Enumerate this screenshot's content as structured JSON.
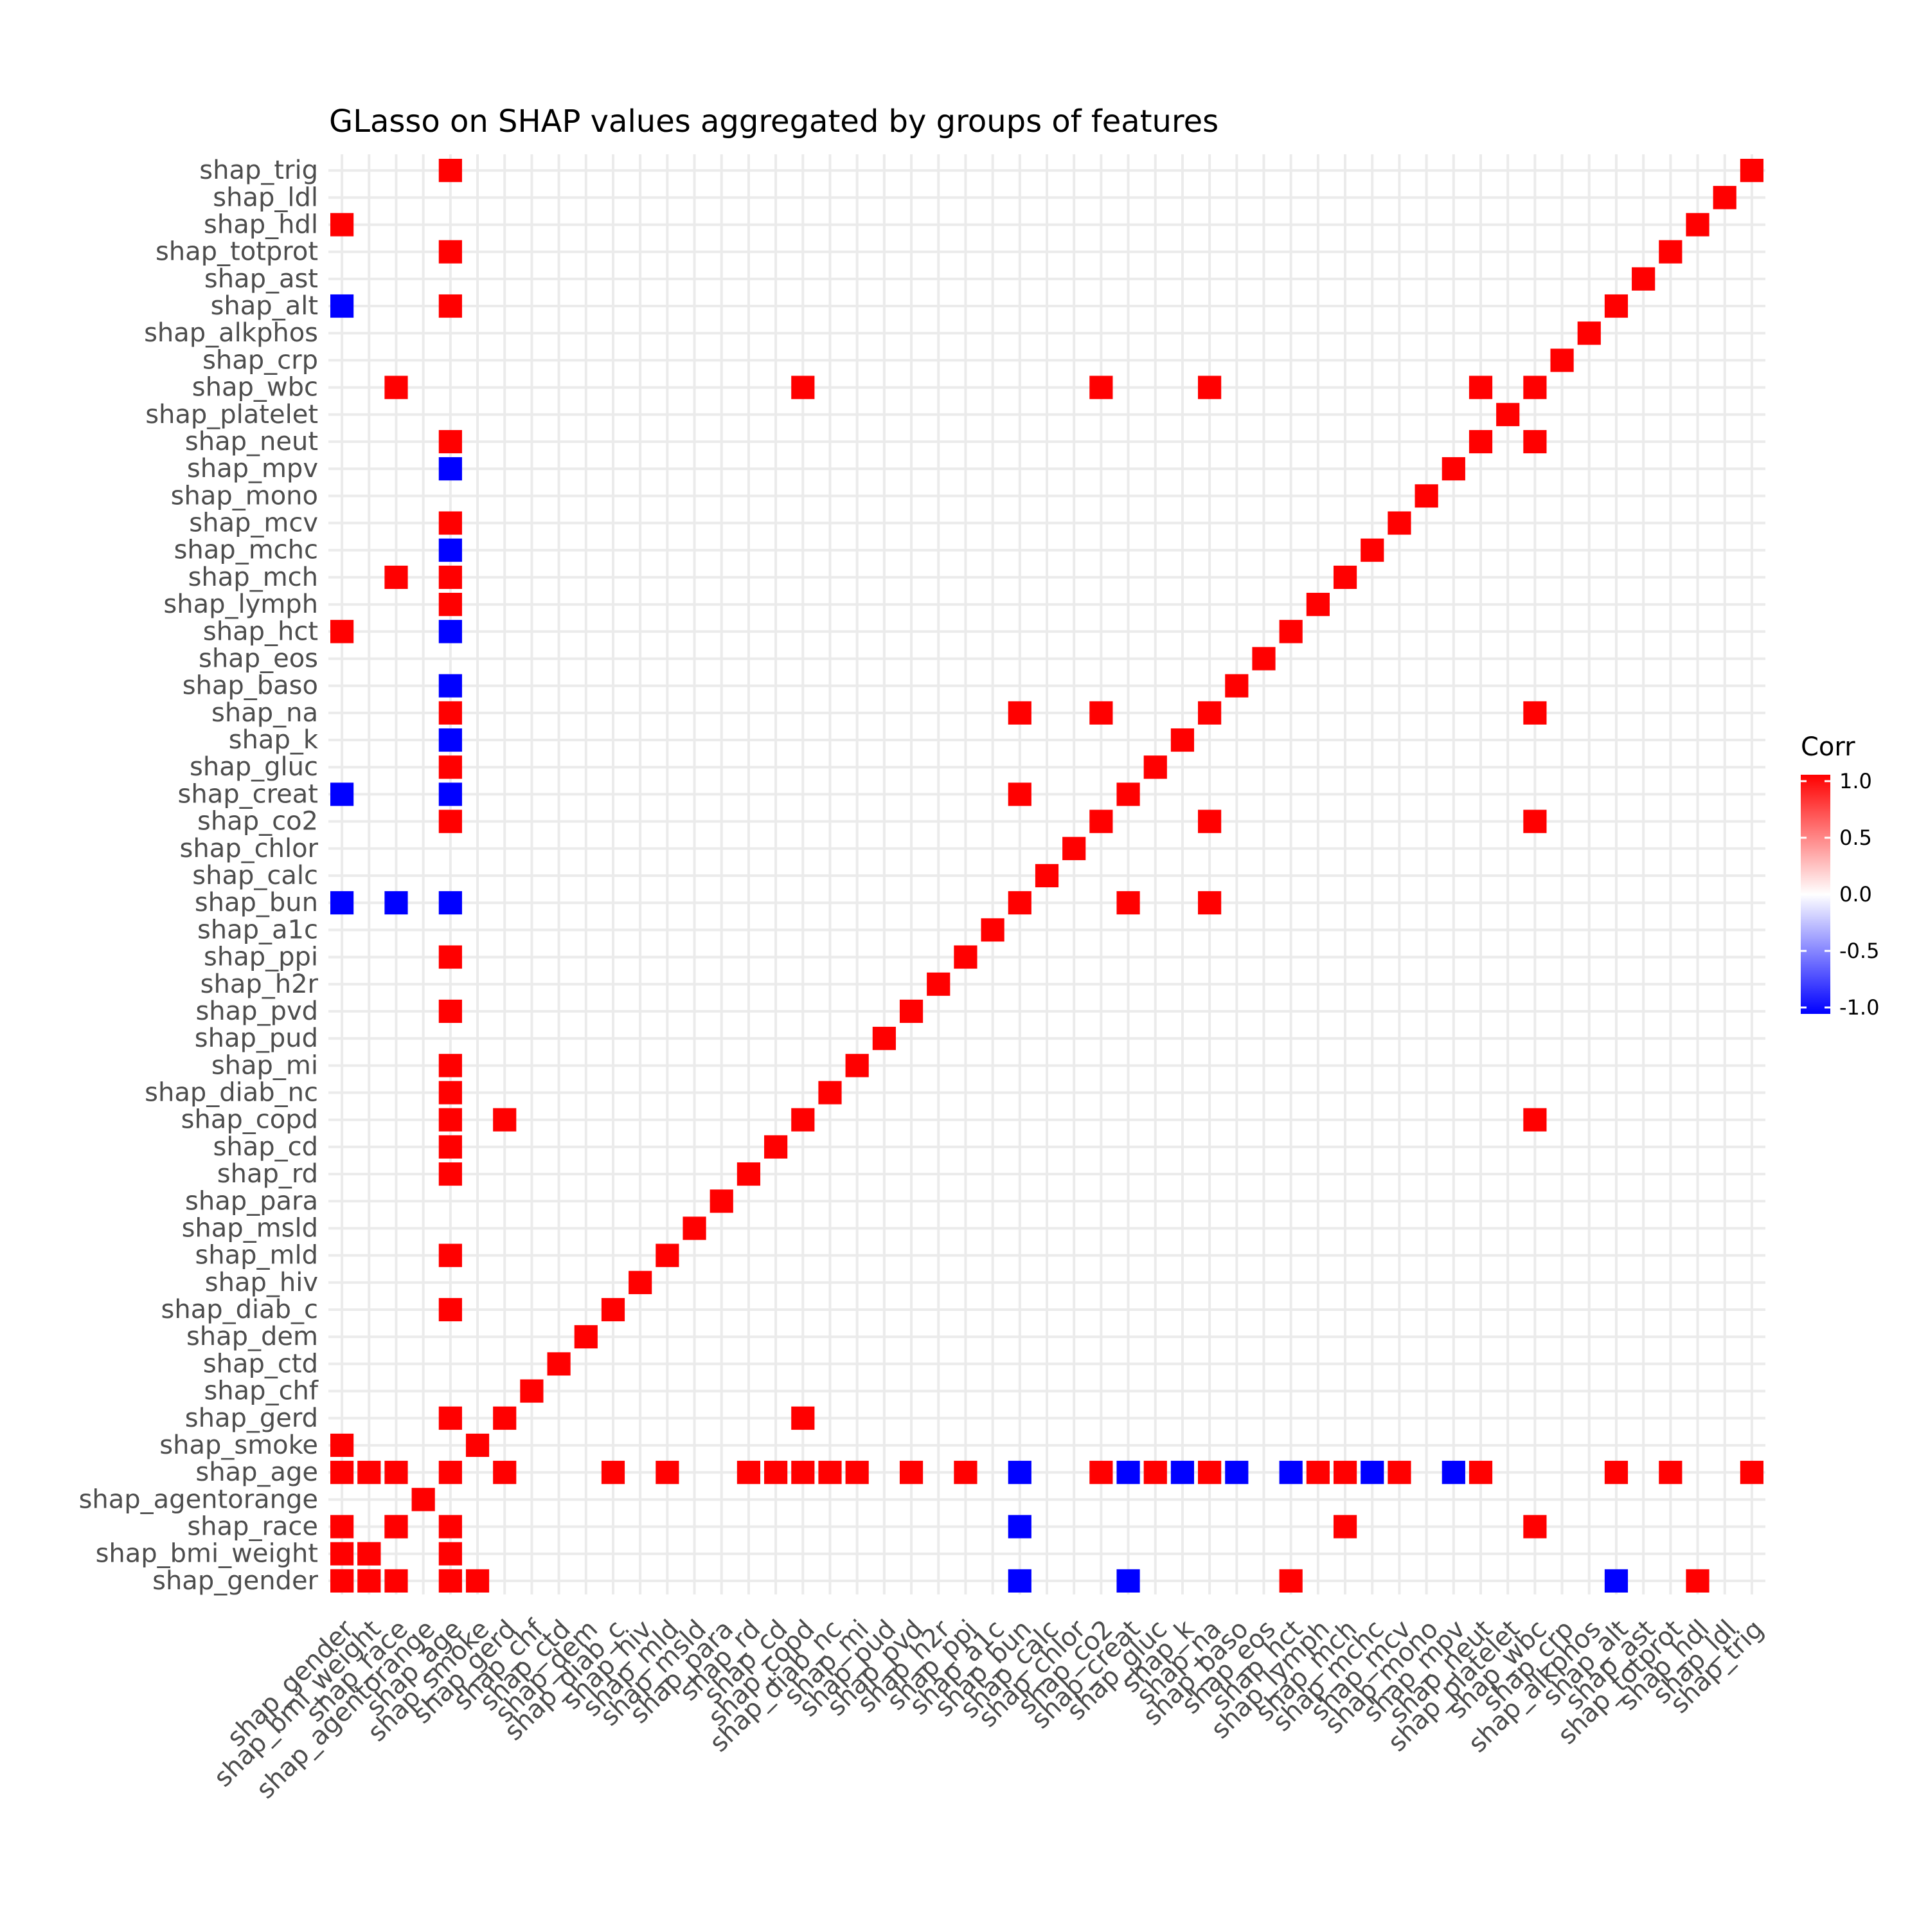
{
  "chart_data": {
    "type": "heatmap",
    "title": "GLasso on SHAP values aggregated by groups of features",
    "xlabel": "",
    "ylabel": "",
    "grid": true,
    "features": [
      "shap_gender",
      "shap_bmi_weight",
      "shap_race",
      "shap_agentorange",
      "shap_age",
      "shap_smoke",
      "shap_gerd",
      "shap_chf",
      "shap_ctd",
      "shap_dem",
      "shap_diab_c",
      "shap_hiv",
      "shap_mld",
      "shap_msld",
      "shap_para",
      "shap_rd",
      "shap_cd",
      "shap_copd",
      "shap_diab_nc",
      "shap_mi",
      "shap_pud",
      "shap_pvd",
      "shap_h2r",
      "shap_ppi",
      "shap_a1c",
      "shap_bun",
      "shap_calc",
      "shap_chlor",
      "shap_co2",
      "shap_creat",
      "shap_gluc",
      "shap_k",
      "shap_na",
      "shap_baso",
      "shap_eos",
      "shap_hct",
      "shap_lymph",
      "shap_mch",
      "shap_mchc",
      "shap_mcv",
      "shap_mono",
      "shap_mpv",
      "shap_neut",
      "shap_platelet",
      "shap_wbc",
      "shap_crp",
      "shap_alkphos",
      "shap_alt",
      "shap_ast",
      "shap_totprot",
      "shap_hdl",
      "shap_ldl",
      "shap_trig"
    ],
    "cells": [
      [
        "shap_trig",
        "shap_age",
        1
      ],
      [
        "shap_hdl",
        "shap_gender",
        1
      ],
      [
        "shap_totprot",
        "shap_age",
        1
      ],
      [
        "shap_alt",
        "shap_gender",
        -1
      ],
      [
        "shap_alt",
        "shap_age",
        1
      ],
      [
        "shap_wbc",
        "shap_race",
        1
      ],
      [
        "shap_wbc",
        "shap_copd",
        1
      ],
      [
        "shap_wbc",
        "shap_co2",
        1
      ],
      [
        "shap_wbc",
        "shap_na",
        1
      ],
      [
        "shap_wbc",
        "shap_neut",
        1
      ],
      [
        "shap_neut",
        "shap_age",
        1
      ],
      [
        "shap_neut",
        "shap_wbc",
        1
      ],
      [
        "shap_mpv",
        "shap_age",
        -1
      ],
      [
        "shap_mcv",
        "shap_age",
        1
      ],
      [
        "shap_mchc",
        "shap_age",
        -1
      ],
      [
        "shap_mch",
        "shap_race",
        1
      ],
      [
        "shap_mch",
        "shap_age",
        1
      ],
      [
        "shap_lymph",
        "shap_age",
        1
      ],
      [
        "shap_hct",
        "shap_gender",
        1
      ],
      [
        "shap_hct",
        "shap_age",
        -1
      ],
      [
        "shap_baso",
        "shap_age",
        -1
      ],
      [
        "shap_na",
        "shap_age",
        1
      ],
      [
        "shap_na",
        "shap_bun",
        1
      ],
      [
        "shap_na",
        "shap_co2",
        1
      ],
      [
        "shap_na",
        "shap_wbc",
        1
      ],
      [
        "shap_k",
        "shap_age",
        -1
      ],
      [
        "shap_gluc",
        "shap_age",
        1
      ],
      [
        "shap_creat",
        "shap_gender",
        -1
      ],
      [
        "shap_creat",
        "shap_age",
        -1
      ],
      [
        "shap_creat",
        "shap_bun",
        1
      ],
      [
        "shap_co2",
        "shap_age",
        1
      ],
      [
        "shap_co2",
        "shap_na",
        1
      ],
      [
        "shap_co2",
        "shap_wbc",
        1
      ],
      [
        "shap_bun",
        "shap_gender",
        -1
      ],
      [
        "shap_bun",
        "shap_race",
        -1
      ],
      [
        "shap_bun",
        "shap_age",
        -1
      ],
      [
        "shap_bun",
        "shap_creat",
        1
      ],
      [
        "shap_bun",
        "shap_na",
        1
      ],
      [
        "shap_ppi",
        "shap_age",
        1
      ],
      [
        "shap_pvd",
        "shap_age",
        1
      ],
      [
        "shap_mi",
        "shap_age",
        1
      ],
      [
        "shap_diab_nc",
        "shap_age",
        1
      ],
      [
        "shap_copd",
        "shap_age",
        1
      ],
      [
        "shap_copd",
        "shap_gerd",
        1
      ],
      [
        "shap_copd",
        "shap_wbc",
        1
      ],
      [
        "shap_cd",
        "shap_age",
        1
      ],
      [
        "shap_rd",
        "shap_age",
        1
      ],
      [
        "shap_mld",
        "shap_age",
        1
      ],
      [
        "shap_diab_c",
        "shap_age",
        1
      ],
      [
        "shap_gerd",
        "shap_age",
        1
      ],
      [
        "shap_gerd",
        "shap_copd",
        1
      ],
      [
        "shap_smoke",
        "shap_gender",
        1
      ],
      [
        "shap_age",
        "shap_gender",
        1
      ],
      [
        "shap_age",
        "shap_bmi_weight",
        1
      ],
      [
        "shap_age",
        "shap_race",
        1
      ],
      [
        "shap_age",
        "shap_gerd",
        1
      ],
      [
        "shap_age",
        "shap_diab_c",
        1
      ],
      [
        "shap_age",
        "shap_mld",
        1
      ],
      [
        "shap_age",
        "shap_rd",
        1
      ],
      [
        "shap_age",
        "shap_cd",
        1
      ],
      [
        "shap_age",
        "shap_copd",
        1
      ],
      [
        "shap_age",
        "shap_diab_nc",
        1
      ],
      [
        "shap_age",
        "shap_mi",
        1
      ],
      [
        "shap_age",
        "shap_pvd",
        1
      ],
      [
        "shap_age",
        "shap_ppi",
        1
      ],
      [
        "shap_age",
        "shap_bun",
        -1
      ],
      [
        "shap_age",
        "shap_co2",
        1
      ],
      [
        "shap_age",
        "shap_creat",
        -1
      ],
      [
        "shap_age",
        "shap_gluc",
        1
      ],
      [
        "shap_age",
        "shap_k",
        -1
      ],
      [
        "shap_age",
        "shap_na",
        1
      ],
      [
        "shap_age",
        "shap_baso",
        -1
      ],
      [
        "shap_age",
        "shap_hct",
        -1
      ],
      [
        "shap_age",
        "shap_lymph",
        1
      ],
      [
        "shap_age",
        "shap_mch",
        1
      ],
      [
        "shap_age",
        "shap_mchc",
        -1
      ],
      [
        "shap_age",
        "shap_mcv",
        1
      ],
      [
        "shap_age",
        "shap_mpv",
        -1
      ],
      [
        "shap_age",
        "shap_neut",
        1
      ],
      [
        "shap_age",
        "shap_alt",
        1
      ],
      [
        "shap_age",
        "shap_totprot",
        1
      ],
      [
        "shap_age",
        "shap_trig",
        1
      ],
      [
        "shap_race",
        "shap_gender",
        1
      ],
      [
        "shap_race",
        "shap_race",
        1
      ],
      [
        "shap_race",
        "shap_age",
        1
      ],
      [
        "shap_race",
        "shap_bun",
        -1
      ],
      [
        "shap_race",
        "shap_mch",
        1
      ],
      [
        "shap_race",
        "shap_wbc",
        1
      ],
      [
        "shap_bmi_weight",
        "shap_gender",
        1
      ],
      [
        "shap_bmi_weight",
        "shap_bmi_weight",
        1
      ],
      [
        "shap_bmi_weight",
        "shap_age",
        1
      ],
      [
        "shap_gender",
        "shap_gender",
        1
      ],
      [
        "shap_gender",
        "shap_bmi_weight",
        1
      ],
      [
        "shap_gender",
        "shap_race",
        1
      ],
      [
        "shap_gender",
        "shap_age",
        1
      ],
      [
        "shap_gender",
        "shap_smoke",
        1
      ],
      [
        "shap_gender",
        "shap_bun",
        -1
      ],
      [
        "shap_gender",
        "shap_creat",
        -1
      ],
      [
        "shap_gender",
        "shap_hct",
        1
      ],
      [
        "shap_gender",
        "shap_alt",
        -1
      ],
      [
        "shap_gender",
        "shap_hdl",
        1
      ]
    ],
    "legend": {
      "title": "Corr",
      "position": "right",
      "ticks": [
        "1.0",
        "0.5",
        "0.0",
        "-0.5",
        "-1.0"
      ],
      "tick_values": [
        1,
        0.5,
        0,
        -0.5,
        -1
      ],
      "range": [
        -1,
        1
      ]
    },
    "colors": {
      "low": "#0000ff",
      "mid": "#ffffff",
      "high": "#ff0000",
      "grid": "#ebebeb",
      "tick_text": "#4d4d4d",
      "title_text": "#000000"
    }
  }
}
